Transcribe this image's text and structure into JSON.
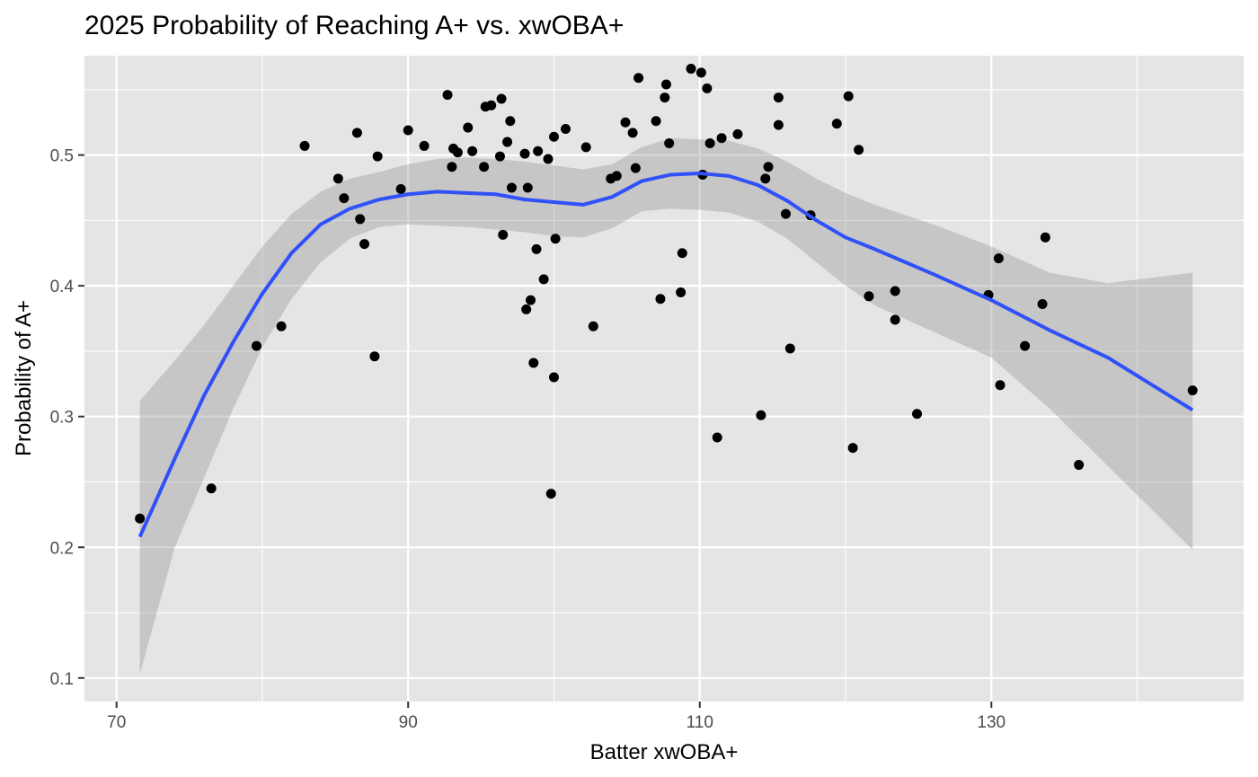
{
  "chart_data": {
    "type": "scatter",
    "title": "2025 Probability of Reaching A+ vs. xwOBA+",
    "xlabel": "Batter xwOBA+",
    "ylabel": "Probability of A+",
    "xlim": [
      67.8,
      147.3
    ],
    "ylim": [
      0.082,
      0.576
    ],
    "x_ticks": [
      70,
      90,
      110,
      130
    ],
    "x_tick_labels": [
      "70",
      "90",
      "110",
      "130"
    ],
    "x_minor_ticks": [
      80,
      100,
      120,
      140
    ],
    "y_ticks": [
      0.1,
      0.2,
      0.3,
      0.4,
      0.5
    ],
    "y_tick_labels": [
      "0.1",
      "0.2",
      "0.3",
      "0.4",
      "0.5"
    ],
    "y_minor_ticks": [
      0.15,
      0.25,
      0.35,
      0.45,
      0.55
    ],
    "grid": true,
    "legend": "none",
    "colors": {
      "panel_background": "#e5e5e5",
      "grid": "#ffffff",
      "points": "#000000",
      "smooth_line": "#3050f8",
      "ribbon": "#999999"
    },
    "points": [
      {
        "x": 71.6,
        "y": 0.222
      },
      {
        "x": 76.5,
        "y": 0.245
      },
      {
        "x": 79.6,
        "y": 0.354
      },
      {
        "x": 81.3,
        "y": 0.369
      },
      {
        "x": 82.9,
        "y": 0.507
      },
      {
        "x": 85.2,
        "y": 0.482
      },
      {
        "x": 85.6,
        "y": 0.467
      },
      {
        "x": 86.5,
        "y": 0.517
      },
      {
        "x": 86.7,
        "y": 0.451
      },
      {
        "x": 87.0,
        "y": 0.432
      },
      {
        "x": 87.7,
        "y": 0.346
      },
      {
        "x": 87.9,
        "y": 0.499
      },
      {
        "x": 89.5,
        "y": 0.474
      },
      {
        "x": 90.0,
        "y": 0.519
      },
      {
        "x": 91.1,
        "y": 0.507
      },
      {
        "x": 92.7,
        "y": 0.546
      },
      {
        "x": 93.0,
        "y": 0.491
      },
      {
        "x": 93.1,
        "y": 0.505
      },
      {
        "x": 93.4,
        "y": 0.502
      },
      {
        "x": 94.1,
        "y": 0.521
      },
      {
        "x": 94.4,
        "y": 0.503
      },
      {
        "x": 95.2,
        "y": 0.491
      },
      {
        "x": 95.3,
        "y": 0.537
      },
      {
        "x": 95.7,
        "y": 0.538
      },
      {
        "x": 96.3,
        "y": 0.499
      },
      {
        "x": 96.4,
        "y": 0.543
      },
      {
        "x": 96.5,
        "y": 0.439
      },
      {
        "x": 96.8,
        "y": 0.51
      },
      {
        "x": 97.0,
        "y": 0.526
      },
      {
        "x": 97.1,
        "y": 0.475
      },
      {
        "x": 98.0,
        "y": 0.501
      },
      {
        "x": 98.1,
        "y": 0.382
      },
      {
        "x": 98.2,
        "y": 0.475
      },
      {
        "x": 98.4,
        "y": 0.389
      },
      {
        "x": 98.6,
        "y": 0.341
      },
      {
        "x": 98.8,
        "y": 0.428
      },
      {
        "x": 98.9,
        "y": 0.503
      },
      {
        "x": 99.3,
        "y": 0.405
      },
      {
        "x": 99.6,
        "y": 0.497
      },
      {
        "x": 99.8,
        "y": 0.241
      },
      {
        "x": 100.0,
        "y": 0.33
      },
      {
        "x": 100.0,
        "y": 0.514
      },
      {
        "x": 100.1,
        "y": 0.436
      },
      {
        "x": 100.8,
        "y": 0.52
      },
      {
        "x": 102.2,
        "y": 0.506
      },
      {
        "x": 102.7,
        "y": 0.369
      },
      {
        "x": 103.9,
        "y": 0.482
      },
      {
        "x": 104.3,
        "y": 0.484
      },
      {
        "x": 104.9,
        "y": 0.525
      },
      {
        "x": 105.4,
        "y": 0.517
      },
      {
        "x": 105.6,
        "y": 0.49
      },
      {
        "x": 105.8,
        "y": 0.559
      },
      {
        "x": 107.0,
        "y": 0.526
      },
      {
        "x": 107.3,
        "y": 0.39
      },
      {
        "x": 107.6,
        "y": 0.544
      },
      {
        "x": 107.7,
        "y": 0.554
      },
      {
        "x": 107.9,
        "y": 0.509
      },
      {
        "x": 108.7,
        "y": 0.395
      },
      {
        "x": 108.8,
        "y": 0.425
      },
      {
        "x": 109.4,
        "y": 0.566
      },
      {
        "x": 110.1,
        "y": 0.563
      },
      {
        "x": 110.2,
        "y": 0.485
      },
      {
        "x": 110.5,
        "y": 0.551
      },
      {
        "x": 110.7,
        "y": 0.509
      },
      {
        "x": 111.2,
        "y": 0.284
      },
      {
        "x": 111.5,
        "y": 0.513
      },
      {
        "x": 112.6,
        "y": 0.516
      },
      {
        "x": 114.2,
        "y": 0.301
      },
      {
        "x": 114.5,
        "y": 0.482
      },
      {
        "x": 114.7,
        "y": 0.491
      },
      {
        "x": 115.4,
        "y": 0.544
      },
      {
        "x": 115.4,
        "y": 0.523
      },
      {
        "x": 115.9,
        "y": 0.455
      },
      {
        "x": 116.2,
        "y": 0.352
      },
      {
        "x": 117.6,
        "y": 0.454
      },
      {
        "x": 119.4,
        "y": 0.524
      },
      {
        "x": 120.2,
        "y": 0.545
      },
      {
        "x": 120.5,
        "y": 0.276
      },
      {
        "x": 120.9,
        "y": 0.504
      },
      {
        "x": 121.6,
        "y": 0.392
      },
      {
        "x": 123.4,
        "y": 0.396
      },
      {
        "x": 123.4,
        "y": 0.374
      },
      {
        "x": 124.9,
        "y": 0.302
      },
      {
        "x": 129.8,
        "y": 0.393
      },
      {
        "x": 130.5,
        "y": 0.421
      },
      {
        "x": 130.6,
        "y": 0.324
      },
      {
        "x": 132.3,
        "y": 0.354
      },
      {
        "x": 133.5,
        "y": 0.386
      },
      {
        "x": 133.7,
        "y": 0.437
      },
      {
        "x": 136.0,
        "y": 0.263
      },
      {
        "x": 143.8,
        "y": 0.32
      }
    ],
    "smooth": {
      "x": [
        71.6,
        74,
        76,
        78,
        80,
        82,
        84,
        86,
        88,
        90,
        92,
        94,
        96,
        98,
        100,
        102,
        104,
        106,
        108,
        110,
        112,
        114,
        116,
        118,
        120,
        122,
        126,
        130,
        134,
        138,
        143.8
      ],
      "y": [
        0.208,
        0.268,
        0.316,
        0.357,
        0.394,
        0.425,
        0.447,
        0.459,
        0.466,
        0.47,
        0.472,
        0.471,
        0.47,
        0.466,
        0.464,
        0.462,
        0.468,
        0.48,
        0.485,
        0.486,
        0.484,
        0.477,
        0.465,
        0.45,
        0.437,
        0.428,
        0.409,
        0.389,
        0.366,
        0.345,
        0.305
      ],
      "lower": [
        0.103,
        0.2,
        0.253,
        0.306,
        0.353,
        0.39,
        0.418,
        0.436,
        0.445,
        0.447,
        0.446,
        0.445,
        0.443,
        0.441,
        0.438,
        0.437,
        0.444,
        0.457,
        0.459,
        0.458,
        0.456,
        0.449,
        0.436,
        0.418,
        0.4,
        0.385,
        0.365,
        0.345,
        0.306,
        0.262,
        0.198
      ],
      "upper": [
        0.312,
        0.343,
        0.37,
        0.4,
        0.43,
        0.455,
        0.472,
        0.482,
        0.487,
        0.493,
        0.497,
        0.498,
        0.497,
        0.495,
        0.492,
        0.489,
        0.493,
        0.506,
        0.513,
        0.512,
        0.511,
        0.505,
        0.495,
        0.482,
        0.471,
        0.462,
        0.447,
        0.43,
        0.41,
        0.402,
        0.41
      ]
    }
  }
}
